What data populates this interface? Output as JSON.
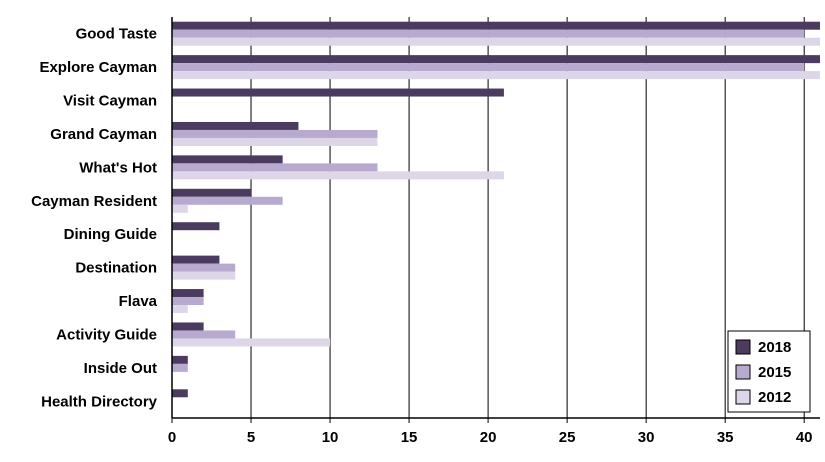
{
  "chart_data": {
    "type": "hbar",
    "categories": [
      "Good Taste",
      "Explore Cayman",
      "Visit Cayman",
      "Grand Cayman",
      "What's Hot",
      "Cayman Resident",
      "Dining Guide",
      "Destination",
      "Flava",
      "Activity Guide",
      "Inside Out",
      "Health Directory"
    ],
    "series": [
      {
        "name": "2018",
        "color": "#4b3b5e",
        "values": [
          41,
          41,
          21,
          8,
          7,
          5,
          3,
          3,
          2,
          2,
          1,
          1
        ]
      },
      {
        "name": "2015",
        "color": "#b8a9cf",
        "values": [
          40,
          40,
          0,
          13,
          13,
          7,
          0,
          4,
          2,
          4,
          1,
          0
        ]
      },
      {
        "name": "2012",
        "color": "#ddd5e8",
        "values": [
          41,
          41,
          0,
          13,
          21,
          1,
          0,
          4,
          1,
          10,
          0,
          0
        ]
      }
    ],
    "xlim": [
      0,
      41
    ],
    "xticks": [
      0,
      5,
      10,
      15,
      20,
      25,
      30,
      35,
      40
    ],
    "grid": true,
    "legend": "bottom-right"
  }
}
